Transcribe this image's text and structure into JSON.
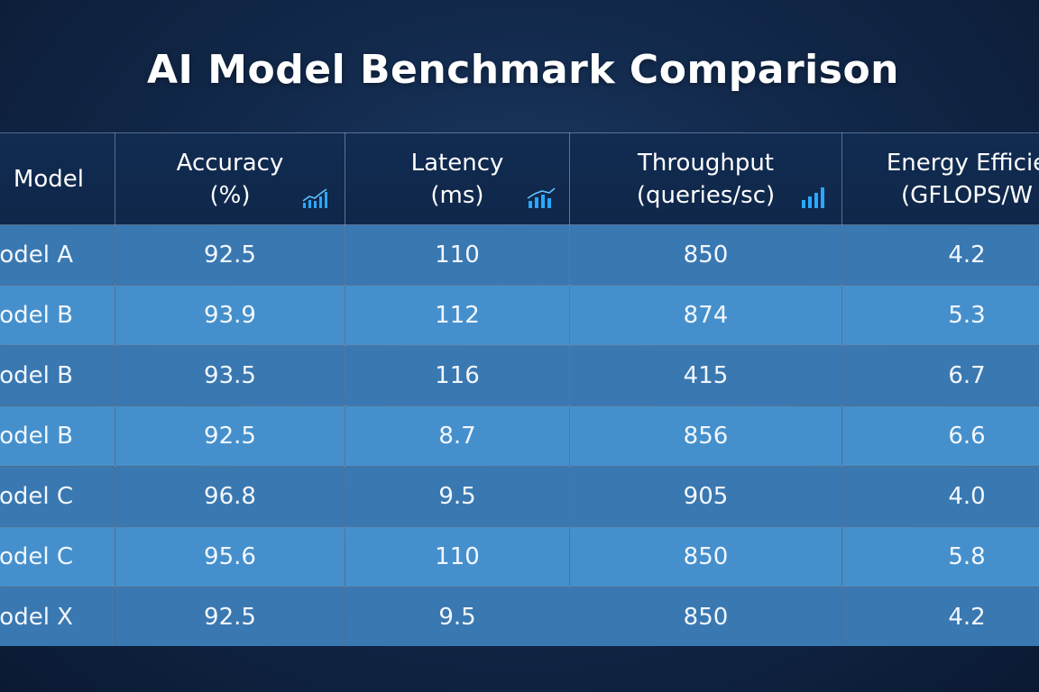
{
  "title": "AI Model Benchmark Comparison",
  "colors": {
    "background": "#12294b",
    "header_bg": "#0f2749",
    "row_odd": "#3a78b1",
    "row_even": "#4590cc",
    "accent_icon": "#2aa8ff"
  },
  "chart_data": {
    "type": "table",
    "title": "AI Model Benchmark Comparison",
    "columns": [
      {
        "label": "Model",
        "icon": ""
      },
      {
        "label": "Accuracy\n(%)",
        "icon": "line-chart-icon"
      },
      {
        "label": "Latency\n(ms)",
        "icon": "bar-line-chart-icon"
      },
      {
        "label": "Throughput\n(queries/sc)",
        "icon": "bar-chart-icon"
      },
      {
        "label": "Energy Efficie\n(GFLOPS/W",
        "icon": ""
      }
    ],
    "rows": [
      [
        "odel A",
        "92.5",
        "110",
        "850",
        "4.2"
      ],
      [
        "odel B",
        "93.9",
        "112",
        "874",
        "5.3"
      ],
      [
        "odel B",
        "93.5",
        "116",
        "415",
        "6.7"
      ],
      [
        "odel B",
        "92.5",
        "8.7",
        "856",
        "6.6"
      ],
      [
        "odel C",
        "96.8",
        "9.5",
        "905",
        "4.0"
      ],
      [
        "odel C",
        "95.6",
        "110",
        "850",
        "5.8"
      ],
      [
        "odel X",
        "92.5",
        "9.5",
        "850",
        "4.2"
      ]
    ]
  }
}
